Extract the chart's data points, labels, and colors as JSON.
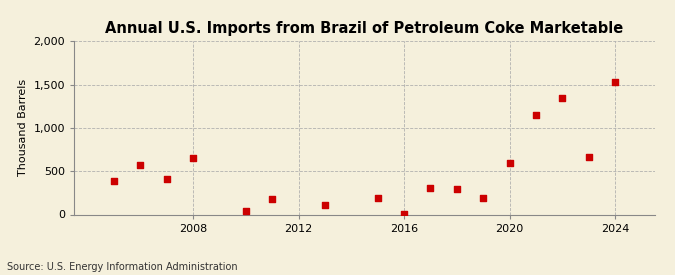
{
  "title": "Annual U.S. Imports from Brazil of Petroleum Coke Marketable",
  "ylabel": "Thousand Barrels",
  "source": "Source: U.S. Energy Information Administration",
  "years": [
    2005,
    2006,
    2007,
    2008,
    2010,
    2011,
    2013,
    2015,
    2016,
    2017,
    2018,
    2019,
    2020,
    2021,
    2022,
    2023,
    2024
  ],
  "values": [
    390,
    575,
    415,
    650,
    40,
    175,
    105,
    185,
    5,
    305,
    295,
    185,
    595,
    1150,
    1340,
    665,
    1535
  ],
  "marker_color": "#cc0000",
  "marker": "s",
  "marker_size": 4,
  "background_color": "#f5f0dc",
  "grid_color": "#aaaaaa",
  "xlim": [
    2003.5,
    2025.5
  ],
  "ylim": [
    0,
    2000
  ],
  "yticks": [
    0,
    500,
    1000,
    1500,
    2000
  ],
  "xticks": [
    2008,
    2012,
    2016,
    2020,
    2024
  ],
  "title_fontsize": 10.5,
  "label_fontsize": 8,
  "tick_fontsize": 8,
  "source_fontsize": 7
}
